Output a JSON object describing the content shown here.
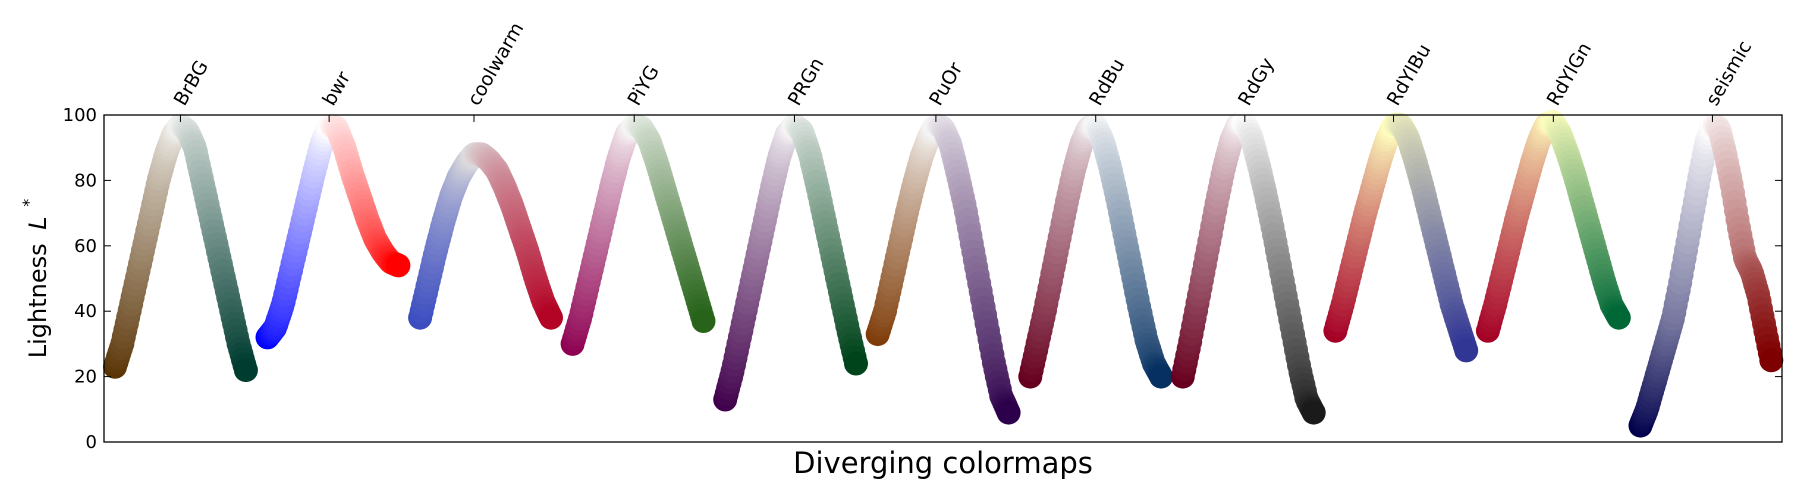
{
  "chart_data": {
    "type": "scatter",
    "xlabel": "Diverging colormaps",
    "ylabel": "Lightness",
    "ylabel_symbol": "L",
    "ylabel_superscript": "*",
    "ylim": [
      0,
      100
    ],
    "yticks": [
      "0",
      "20",
      "40",
      "60",
      "80",
      "100"
    ],
    "grid": false,
    "colormaps": [
      {
        "name": "BrBG",
        "left_color": "#5a3405",
        "center_color": "#f3f3f1",
        "right_color": "#003c30",
        "lightness": [
          23,
          30,
          40,
          50,
          60,
          70,
          80,
          88,
          94,
          97,
          95,
          90,
          80,
          70,
          60,
          50,
          40,
          30,
          22
        ]
      },
      {
        "name": "bwr",
        "left_color": "#0000ff",
        "center_color": "#ffffff",
        "right_color": "#ff0000",
        "lightness": [
          32,
          35,
          42,
          52,
          62,
          72,
          82,
          91,
          97,
          96,
          90,
          82,
          75,
          68,
          62,
          58,
          55,
          54
        ]
      },
      {
        "name": "coolwarm",
        "left_color": "#3b4cc0",
        "center_color": "#dddcdc",
        "right_color": "#b40426",
        "lightness": [
          38,
          48,
          58,
          67,
          75,
          81,
          85,
          88,
          88,
          86,
          83,
          78,
          72,
          65,
          58,
          50,
          43,
          38
        ]
      },
      {
        "name": "PiYG",
        "left_color": "#8e0152",
        "center_color": "#f7f7f6",
        "right_color": "#276419",
        "lightness": [
          30,
          38,
          48,
          58,
          68,
          78,
          87,
          94,
          97,
          96,
          92,
          85,
          77,
          69,
          61,
          53,
          45,
          37
        ]
      },
      {
        "name": "PRGn",
        "left_color": "#40004b",
        "center_color": "#f7f7f7",
        "right_color": "#00441b",
        "lightness": [
          13,
          22,
          33,
          44,
          55,
          66,
          77,
          87,
          94,
          97,
          95,
          88,
          78,
          67,
          56,
          45,
          34,
          24
        ]
      },
      {
        "name": "PuOr",
        "left_color": "#7f3b08",
        "center_color": "#f7f7f7",
        "right_color": "#2d004b",
        "lightness": [
          33,
          40,
          50,
          60,
          70,
          79,
          87,
          93,
          97,
          96,
          91,
          82,
          72,
          60,
          48,
          36,
          24,
          14,
          9
        ]
      },
      {
        "name": "RdBu",
        "left_color": "#67001f",
        "center_color": "#f7f7f7",
        "right_color": "#053061",
        "lightness": [
          20,
          30,
          40,
          51,
          62,
          73,
          83,
          91,
          96,
          97,
          92,
          84,
          74,
          63,
          52,
          41,
          31,
          24,
          20
        ]
      },
      {
        "name": "RdGy",
        "left_color": "#67001f",
        "center_color": "#ffffff",
        "right_color": "#1a1a1a",
        "lightness": [
          20,
          30,
          41,
          52,
          63,
          74,
          84,
          92,
          97,
          98,
          93,
          85,
          76,
          66,
          55,
          44,
          33,
          22,
          13,
          9
        ]
      },
      {
        "name": "RdYlBu",
        "left_color": "#a50026",
        "center_color": "#ffffbf",
        "right_color": "#313695",
        "lightness": [
          34,
          42,
          51,
          60,
          69,
          77,
          85,
          92,
          97,
          97,
          93,
          86,
          78,
          69,
          60,
          51,
          42,
          35,
          28
        ]
      },
      {
        "name": "RdYlGn",
        "left_color": "#a50026",
        "center_color": "#ffffbf",
        "right_color": "#006837",
        "lightness": [
          34,
          42,
          51,
          60,
          69,
          77,
          85,
          92,
          97,
          98,
          94,
          88,
          81,
          73,
          65,
          57,
          49,
          42,
          38
        ]
      },
      {
        "name": "seismic",
        "left_color": "#00004c",
        "center_color": "#ffffff",
        "right_color": "#7f0000",
        "lightness": [
          5,
          10,
          17,
          24,
          31,
          38,
          48,
          59,
          70,
          81,
          91,
          97,
          96,
          88,
          78,
          66,
          56,
          52,
          45,
          35,
          25
        ]
      }
    ]
  }
}
